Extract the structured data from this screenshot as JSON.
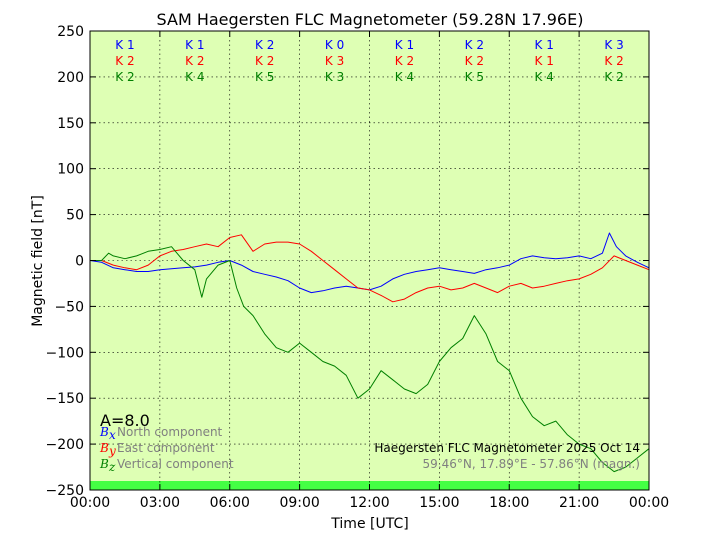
{
  "chart_data": {
    "type": "line",
    "title": "SAM Haegersten FLC Magnetometer (59.28N 17.96E)",
    "xlabel": "Time [UTC]",
    "ylabel": "Magnetic field [nT]",
    "xlim": [
      0,
      24
    ],
    "ylim": [
      -250,
      250
    ],
    "x_ticks": [
      0,
      3,
      6,
      9,
      12,
      15,
      18,
      21,
      24
    ],
    "x_tick_labels": [
      "00:00",
      "03:00",
      "06:00",
      "09:00",
      "12:00",
      "15:00",
      "18:00",
      "21:00",
      "00:00"
    ],
    "y_ticks": [
      -250,
      -200,
      -150,
      -100,
      -50,
      0,
      50,
      100,
      150,
      200,
      250
    ],
    "y_tick_labels": [
      "−250",
      "−200",
      "−150",
      "−100",
      "−50",
      "0",
      "50",
      "100",
      "150",
      "200",
      "250"
    ],
    "grid": true,
    "background_color": "#deffb4",
    "activity_bar_color": "#44ff44",
    "k_indices": {
      "series_colors": [
        "#0000ff",
        "#ff0000",
        "#008000"
      ],
      "rows": [
        [
          "K 1",
          "K 1",
          "K 2",
          "K 0",
          "K 1",
          "K 2",
          "K 1",
          "K 3"
        ],
        [
          "K 2",
          "K 2",
          "K 2",
          "K 3",
          "K 2",
          "K 2",
          "K 1",
          "K 2"
        ],
        [
          "K 2",
          "K 4",
          "K 5",
          "K 3",
          "K 4",
          "K 5",
          "K 4",
          "K 2"
        ]
      ]
    },
    "a_index_text": "A=8.0",
    "legend": [
      {
        "symbol": "B",
        "subscript": "x",
        "label": "North component",
        "color": "#0000ff"
      },
      {
        "symbol": "B",
        "subscript": "y",
        "label": "East component",
        "color": "#ff0000"
      },
      {
        "symbol": "B",
        "subscript": "z",
        "label": "Vertical component",
        "color": "#008000"
      }
    ],
    "station_line1": "Haegersten FLC Magnetometer 2025 Oct 14",
    "station_line2": "59.46°N, 17.89°E - 57.86°N (magn.)",
    "series": [
      {
        "color": "#0000ff",
        "x": [
          0,
          0.5,
          1,
          1.5,
          2,
          2.5,
          3,
          3.5,
          4,
          4.5,
          5,
          5.5,
          6,
          6.5,
          7,
          7.5,
          8,
          8.5,
          9,
          9.5,
          10,
          10.5,
          11,
          11.5,
          12,
          12.5,
          13,
          13.5,
          14,
          14.5,
          15,
          15.5,
          16,
          16.5,
          17,
          17.5,
          18,
          18.5,
          19,
          19.5,
          20,
          20.5,
          21,
          21.5,
          22,
          22.3,
          22.6,
          23,
          23.5,
          24
        ],
        "values": [
          0,
          -2,
          -8,
          -10,
          -12,
          -12,
          -10,
          -9,
          -8,
          -7,
          -5,
          -2,
          0,
          -5,
          -12,
          -15,
          -18,
          -22,
          -30,
          -35,
          -33,
          -30,
          -28,
          -30,
          -32,
          -28,
          -20,
          -15,
          -12,
          -10,
          -8,
          -10,
          -12,
          -14,
          -10,
          -8,
          -5,
          2,
          5,
          3,
          2,
          3,
          5,
          2,
          8,
          30,
          15,
          5,
          -2,
          -8
        ]
      },
      {
        "color": "#ff0000",
        "x": [
          0,
          0.5,
          1,
          1.5,
          2,
          2.5,
          3,
          3.5,
          4,
          4.5,
          5,
          5.5,
          6,
          6.5,
          7,
          7.5,
          8,
          8.5,
          9,
          9.5,
          10,
          10.5,
          11,
          11.5,
          12,
          12.5,
          13,
          13.5,
          14,
          14.5,
          15,
          15.5,
          16,
          16.5,
          17,
          17.5,
          18,
          18.5,
          19,
          19.5,
          20,
          20.5,
          21,
          21.5,
          22,
          22.5,
          23,
          23.5,
          24
        ],
        "values": [
          0,
          0,
          -5,
          -8,
          -10,
          -5,
          5,
          10,
          12,
          15,
          18,
          15,
          25,
          28,
          10,
          18,
          20,
          20,
          18,
          10,
          0,
          -10,
          -20,
          -30,
          -32,
          -38,
          -45,
          -42,
          -35,
          -30,
          -28,
          -32,
          -30,
          -25,
          -30,
          -35,
          -28,
          -25,
          -30,
          -28,
          -25,
          -22,
          -20,
          -15,
          -8,
          5,
          0,
          -5,
          -10
        ]
      },
      {
        "color": "#008000",
        "x": [
          0,
          0.5,
          0.8,
          1,
          1.5,
          2,
          2.5,
          3,
          3.5,
          4,
          4.5,
          4.8,
          5,
          5.5,
          6,
          6.3,
          6.6,
          7,
          7.5,
          8,
          8.5,
          9,
          9.5,
          10,
          10.5,
          11,
          11.5,
          12,
          12.5,
          13,
          13.5,
          14,
          14.5,
          15,
          15.5,
          16,
          16.5,
          17,
          17.5,
          18,
          18.5,
          19,
          19.5,
          20,
          20.5,
          21,
          21.5,
          22,
          22.5,
          23,
          23.5,
          24
        ],
        "values": [
          0,
          0,
          8,
          5,
          2,
          5,
          10,
          12,
          15,
          0,
          -10,
          -40,
          -20,
          -5,
          0,
          -30,
          -50,
          -60,
          -80,
          -95,
          -100,
          -90,
          -100,
          -110,
          -115,
          -125,
          -150,
          -140,
          -120,
          -130,
          -140,
          -145,
          -135,
          -110,
          -95,
          -85,
          -60,
          -80,
          -110,
          -120,
          -150,
          -170,
          -180,
          -175,
          -190,
          -200,
          -205,
          -220,
          -230,
          -225,
          -215,
          -205
        ]
      }
    ]
  }
}
